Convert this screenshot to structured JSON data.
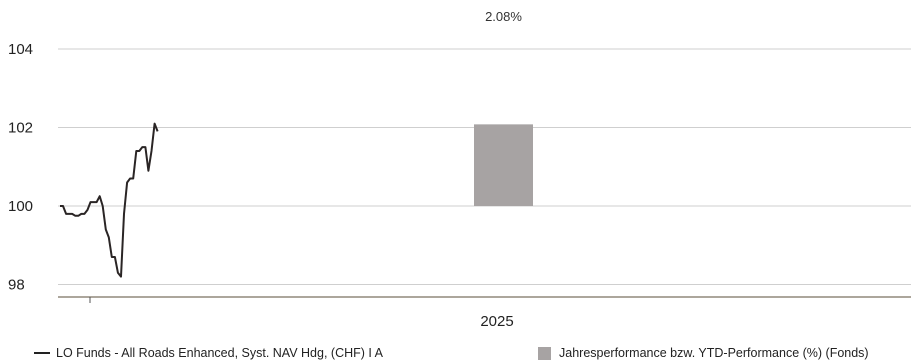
{
  "chart_data": {
    "type": "line+bar",
    "y_axis": {
      "ticks": [
        "98",
        "100",
        "102",
        "104"
      ],
      "range": [
        97.5,
        104.6
      ],
      "grid": true
    },
    "x_axis": {
      "category_label": "2025"
    },
    "line_series": {
      "name": "LO Funds - All Roads Enhanced, Syst. NAV Hdg, (CHF) I A",
      "color": "#2a2525",
      "values": [
        100.0,
        100.0,
        99.8,
        99.8,
        99.8,
        99.75,
        99.75,
        99.8,
        99.8,
        99.9,
        100.1,
        100.1,
        100.1,
        100.25,
        100.0,
        99.4,
        99.2,
        98.7,
        98.7,
        98.3,
        98.2,
        99.8,
        100.6,
        100.7,
        100.7,
        101.4,
        101.4,
        101.5,
        101.5,
        100.9,
        101.4,
        102.1,
        101.9
      ]
    },
    "bar_series": {
      "name": "Jahresperformance bzw. YTD-Performance (%) (Fonds)",
      "color": "#a7a3a3",
      "category": "2025",
      "value_percent": 2.08,
      "value_label": "2.08%"
    }
  }
}
